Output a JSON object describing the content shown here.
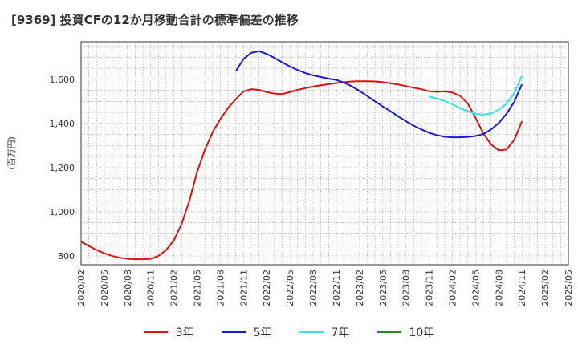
{
  "title": "[9369]  投資CFの12か月移動合計の標準偏差の推移",
  "chart_data": {
    "type": "line",
    "title": "[9369]  投資CFの12か月移動合計の標準偏差の推移",
    "xlabel": "",
    "ylabel": "(百万円)",
    "ylim": [
      760,
      1770
    ],
    "yticks": [
      800,
      1000,
      1200,
      1400,
      1600
    ],
    "x_tick_labels": [
      "2020/02",
      "2020/05",
      "2020/08",
      "2020/11",
      "2021/02",
      "2021/05",
      "2021/08",
      "2021/11",
      "2022/02",
      "2022/05",
      "2022/08",
      "2022/11",
      "2023/02",
      "2023/05",
      "2023/08",
      "2023/11",
      "2024/02",
      "2024/05",
      "2024/08",
      "2024/11",
      "2025/02",
      "2025/05"
    ],
    "x_range": [
      "2020/02",
      "2025/05"
    ],
    "grid": true,
    "legend_position": "bottom",
    "series": [
      {
        "name": "3年",
        "color": "#dd1111",
        "points": [
          [
            "2020/02",
            865
          ],
          [
            "2020/03",
            845
          ],
          [
            "2020/04",
            827
          ],
          [
            "2020/05",
            812
          ],
          [
            "2020/06",
            800
          ],
          [
            "2020/07",
            792
          ],
          [
            "2020/08",
            787
          ],
          [
            "2020/09",
            785
          ],
          [
            "2020/10",
            785
          ],
          [
            "2020/11",
            787
          ],
          [
            "2020/12",
            800
          ],
          [
            "2021/01",
            827
          ],
          [
            "2021/02",
            870
          ],
          [
            "2021/03",
            945
          ],
          [
            "2021/04",
            1050
          ],
          [
            "2021/05",
            1180
          ],
          [
            "2021/06",
            1280
          ],
          [
            "2021/07",
            1360
          ],
          [
            "2021/08",
            1420
          ],
          [
            "2021/09",
            1470
          ],
          [
            "2021/10",
            1510
          ],
          [
            "2021/11",
            1545
          ],
          [
            "2021/12",
            1555
          ],
          [
            "2022/01",
            1552
          ],
          [
            "2022/02",
            1542
          ],
          [
            "2022/03",
            1535
          ],
          [
            "2022/04",
            1533
          ],
          [
            "2022/05",
            1542
          ],
          [
            "2022/06",
            1552
          ],
          [
            "2022/07",
            1560
          ],
          [
            "2022/08",
            1567
          ],
          [
            "2022/09",
            1573
          ],
          [
            "2022/10",
            1578
          ],
          [
            "2022/11",
            1583
          ],
          [
            "2022/12",
            1587
          ],
          [
            "2023/01",
            1590
          ],
          [
            "2023/02",
            1591
          ],
          [
            "2023/03",
            1591
          ],
          [
            "2023/04",
            1590
          ],
          [
            "2023/05",
            1587
          ],
          [
            "2023/06",
            1582
          ],
          [
            "2023/07",
            1576
          ],
          [
            "2023/08",
            1569
          ],
          [
            "2023/09",
            1562
          ],
          [
            "2023/10",
            1555
          ],
          [
            "2023/11",
            1546
          ],
          [
            "2023/12",
            1543
          ],
          [
            "2024/01",
            1545
          ],
          [
            "2024/02",
            1540
          ],
          [
            "2024/03",
            1525
          ],
          [
            "2024/04",
            1490
          ],
          [
            "2024/05",
            1425
          ],
          [
            "2024/06",
            1355
          ],
          [
            "2024/07",
            1305
          ],
          [
            "2024/08",
            1278
          ],
          [
            "2024/09",
            1282
          ],
          [
            "2024/10",
            1325
          ],
          [
            "2024/11",
            1410
          ]
        ]
      },
      {
        "name": "5年",
        "color": "#1a1acc",
        "points": [
          [
            "2021/10",
            1637
          ],
          [
            "2021/11",
            1692
          ],
          [
            "2021/12",
            1720
          ],
          [
            "2022/01",
            1727
          ],
          [
            "2022/02",
            1715
          ],
          [
            "2022/03",
            1697
          ],
          [
            "2022/04",
            1677
          ],
          [
            "2022/05",
            1658
          ],
          [
            "2022/06",
            1642
          ],
          [
            "2022/07",
            1628
          ],
          [
            "2022/08",
            1618
          ],
          [
            "2022/09",
            1610
          ],
          [
            "2022/10",
            1603
          ],
          [
            "2022/11",
            1597
          ],
          [
            "2022/12",
            1585
          ],
          [
            "2023/01",
            1568
          ],
          [
            "2023/02",
            1547
          ],
          [
            "2023/03",
            1524
          ],
          [
            "2023/04",
            1500
          ],
          [
            "2023/05",
            1477
          ],
          [
            "2023/06",
            1455
          ],
          [
            "2023/07",
            1432
          ],
          [
            "2023/08",
            1410
          ],
          [
            "2023/09",
            1390
          ],
          [
            "2023/10",
            1373
          ],
          [
            "2023/11",
            1358
          ],
          [
            "2023/12",
            1347
          ],
          [
            "2024/01",
            1340
          ],
          [
            "2024/02",
            1337
          ],
          [
            "2024/03",
            1337
          ],
          [
            "2024/04",
            1339
          ],
          [
            "2024/05",
            1343
          ],
          [
            "2024/06",
            1352
          ],
          [
            "2024/07",
            1372
          ],
          [
            "2024/08",
            1402
          ],
          [
            "2024/09",
            1443
          ],
          [
            "2024/10",
            1498
          ],
          [
            "2024/11",
            1577
          ]
        ]
      },
      {
        "name": "7年",
        "color": "#33e5e5",
        "points": [
          [
            "2023/11",
            1522
          ],
          [
            "2023/12",
            1513
          ],
          [
            "2024/01",
            1502
          ],
          [
            "2024/02",
            1487
          ],
          [
            "2024/03",
            1469
          ],
          [
            "2024/04",
            1455
          ],
          [
            "2024/05",
            1443
          ],
          [
            "2024/06",
            1440
          ],
          [
            "2024/07",
            1445
          ],
          [
            "2024/08",
            1462
          ],
          [
            "2024/09",
            1490
          ],
          [
            "2024/10",
            1537
          ],
          [
            "2024/11",
            1615
          ]
        ]
      },
      {
        "name": "10年",
        "color": "#228822",
        "points": []
      }
    ]
  }
}
